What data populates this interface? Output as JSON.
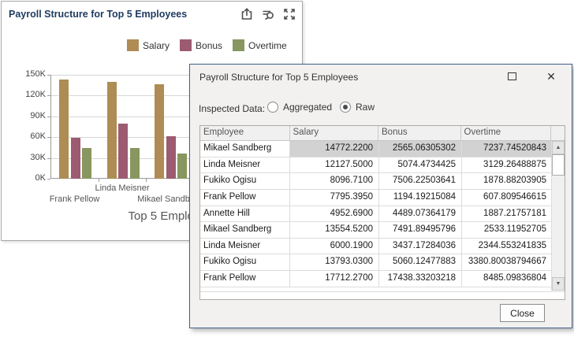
{
  "chart_window": {
    "title": "Payroll Structure for Top 5 Employees",
    "toolbar": {
      "export_icon": "export-icon",
      "inspect_icon": "data-inspector-icon",
      "fullscreen_icon": "fullscreen-icon"
    }
  },
  "chart_data": {
    "type": "bar",
    "title": "Payroll Structure for Top 5 Employees",
    "categories": [
      "Frank Pellow",
      "Linda Meisner",
      "Mikael Sandberg"
    ],
    "series": [
      {
        "name": "Salary",
        "color": "#ae8c54",
        "values": [
          143000,
          140000,
          136000
        ]
      },
      {
        "name": "Bonus",
        "color": "#9c5b70",
        "values": [
          59000,
          80000,
          61000
        ]
      },
      {
        "name": "Overtime",
        "color": "#87975f",
        "values": [
          44000,
          44000,
          36000
        ]
      }
    ],
    "xlabel": "Top 5 Employees",
    "ylabel": "",
    "ylim": [
      0,
      150000
    ],
    "ytick_labels": [
      "0K",
      "30K",
      "60K",
      "90K",
      "120K",
      "150K"
    ],
    "legend_position": "top",
    "grid": true
  },
  "dialog": {
    "title": "Payroll Structure for Top 5 Employees",
    "icons": {
      "maximize": "maximize-icon",
      "close_glyph": "✕"
    },
    "inspected_data_label": "Inspected Data:",
    "options": [
      {
        "label": "Aggregated",
        "selected": false
      },
      {
        "label": "Raw",
        "selected": true
      }
    ],
    "table": {
      "columns": [
        "Employee",
        "Salary",
        "Bonus",
        "Overtime"
      ],
      "selected_row_index": 0,
      "rows": [
        [
          "Mikael Sandberg",
          "14772.2200",
          "2565.06305302",
          "7237.74520843"
        ],
        [
          "Linda Meisner",
          "12127.5000",
          "5074.4734425",
          "3129.26488875"
        ],
        [
          "Fukiko Ogisu",
          "8096.7100",
          "7506.22503641",
          "1878.88203905"
        ],
        [
          "Frank Pellow",
          "7795.3950",
          "1194.19215084",
          "607.809546615"
        ],
        [
          "Annette Hill",
          "4952.6900",
          "4489.07364179",
          "1887.21757181"
        ],
        [
          "Mikael Sandberg",
          "13554.5200",
          "7491.89495796",
          "2533.11952705"
        ],
        [
          "Linda Meisner",
          "6000.1900",
          "3437.17284036",
          "2344.553241835"
        ],
        [
          "Fukiko Ogisu",
          "13793.0300",
          "5060.12477883",
          "3380.80038794667"
        ],
        [
          "Frank Pellow",
          "17712.2700",
          "17438.33203218",
          "8485.09836804"
        ]
      ]
    },
    "close_label": "Close"
  }
}
